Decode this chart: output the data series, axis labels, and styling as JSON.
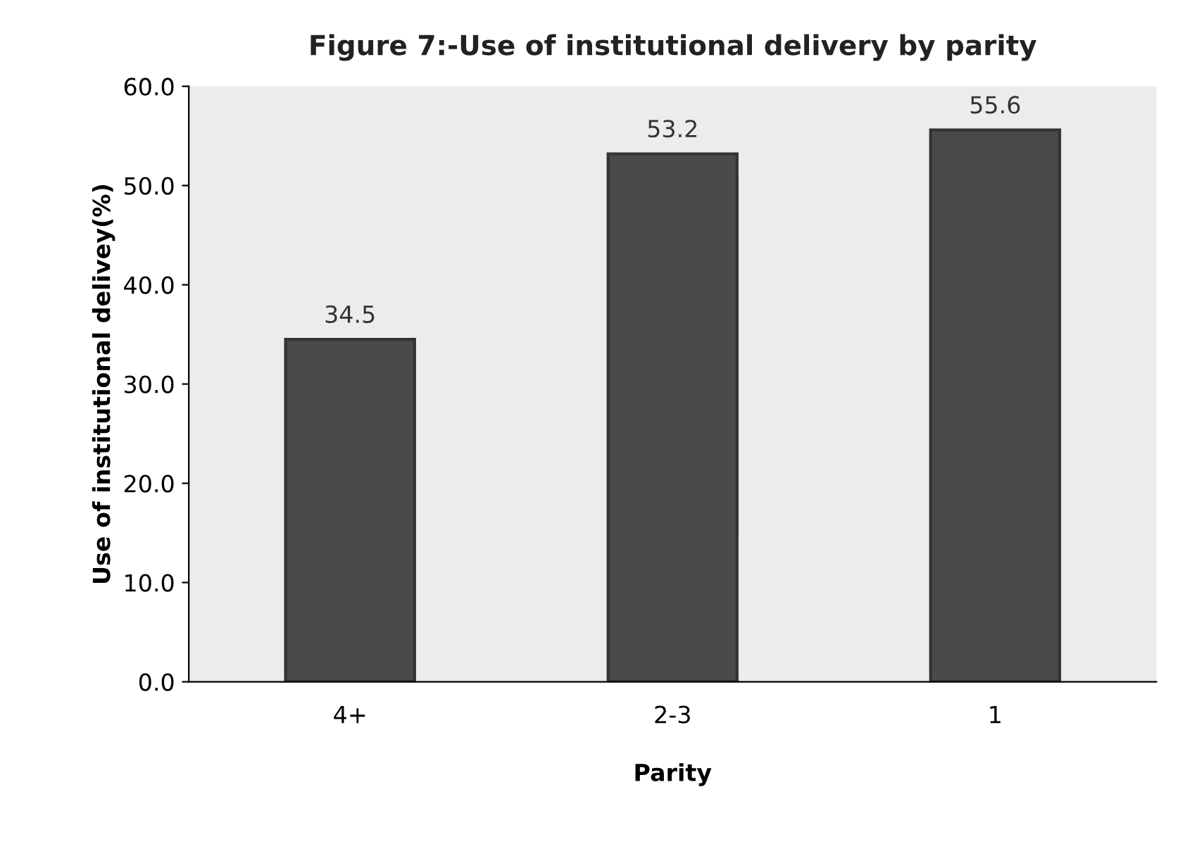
{
  "chart_data": {
    "type": "bar",
    "title": "Figure 7:-Use of institutional delivery by parity",
    "xlabel": "Parity",
    "ylabel": "Use of institutional delivey(%)",
    "categories": [
      "4+",
      "2-3",
      "1"
    ],
    "values": [
      34.5,
      53.2,
      55.6
    ],
    "color": "#4a4a4a",
    "ylim": [
      0,
      60
    ],
    "yticks": [
      {
        "value": 0,
        "label": "0.0"
      },
      {
        "value": 10,
        "label": "10.0"
      },
      {
        "value": 20,
        "label": "20.0"
      },
      {
        "value": 30,
        "label": "30.0"
      },
      {
        "value": 40,
        "label": "40.0"
      },
      {
        "value": 50,
        "label": "50.0"
      },
      {
        "value": 60,
        "label": "60.0"
      }
    ],
    "data_labels": true,
    "grid": false,
    "legend": false
  }
}
